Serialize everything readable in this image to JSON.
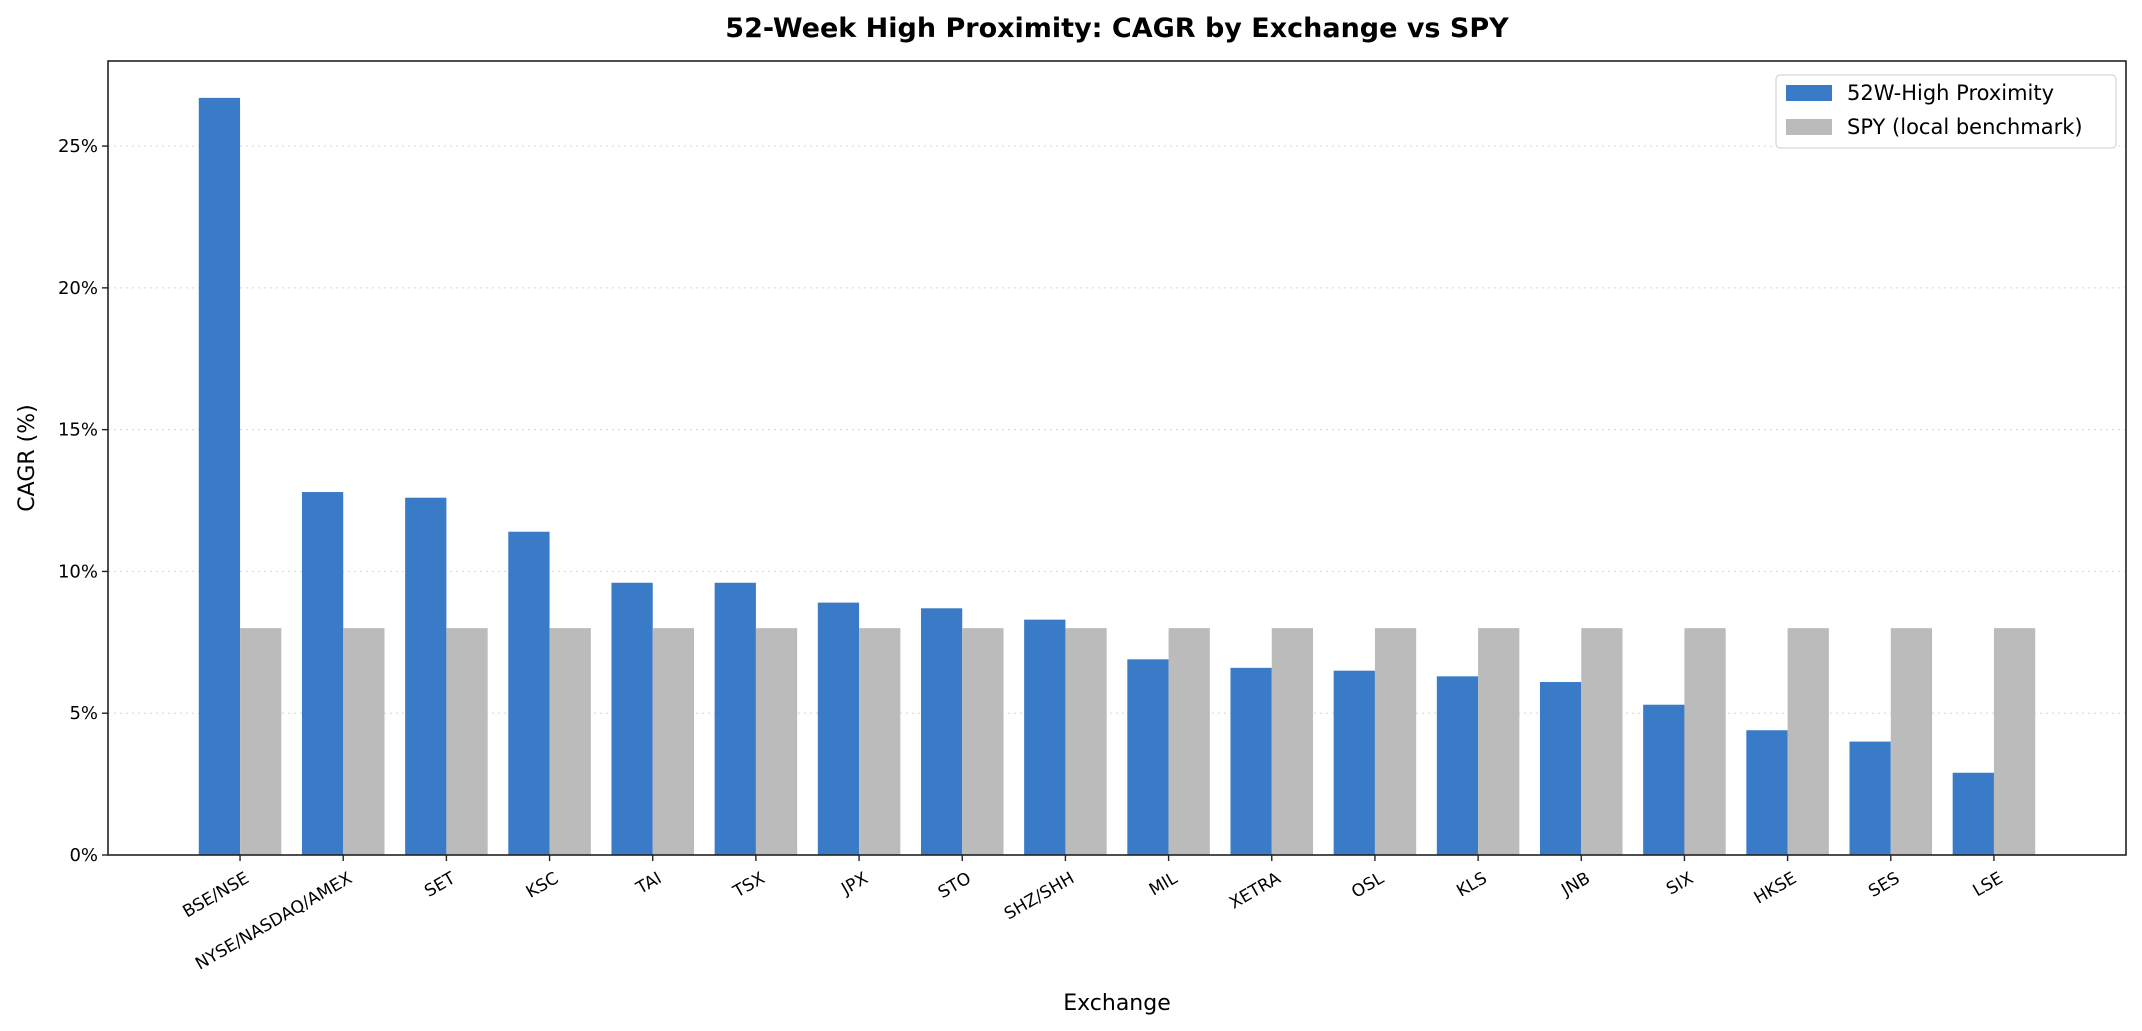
{
  "chart_data": {
    "type": "bar",
    "title": "52-Week High Proximity: CAGR by Exchange vs SPY",
    "xlabel": "Exchange",
    "ylabel": "CAGR (%)",
    "ylim": [
      0,
      28
    ],
    "yticks": [
      0,
      5,
      10,
      15,
      20,
      25
    ],
    "ytick_labels": [
      "0%",
      "5%",
      "10%",
      "15%",
      "20%",
      "25%"
    ],
    "grid": "y, dotted",
    "legend_position": "top-right",
    "categories": [
      "BSE/NSE",
      "NYSE/NASDAQ/AMEX",
      "SET",
      "KSC",
      "TAI",
      "TSX",
      "JPX",
      "STO",
      "SHZ/SHH",
      "MIL",
      "XETRA",
      "OSL",
      "KLS",
      "JNB",
      "SIX",
      "HKSE",
      "SES",
      "LSE"
    ],
    "series": [
      {
        "name": "52W-High Proximity",
        "color": "#3a7bc8",
        "values": [
          26.7,
          12.8,
          12.6,
          11.4,
          9.6,
          9.6,
          8.9,
          8.7,
          8.3,
          6.9,
          6.6,
          6.5,
          6.3,
          6.1,
          5.3,
          4.4,
          4.0,
          2.9
        ]
      },
      {
        "name": "SPY (local benchmark)",
        "color": "#bbbbbb",
        "values": [
          8.0,
          8.0,
          8.0,
          8.0,
          8.0,
          8.0,
          8.0,
          8.0,
          8.0,
          8.0,
          8.0,
          8.0,
          8.0,
          8.0,
          8.0,
          8.0,
          8.0,
          8.0
        ]
      }
    ]
  }
}
